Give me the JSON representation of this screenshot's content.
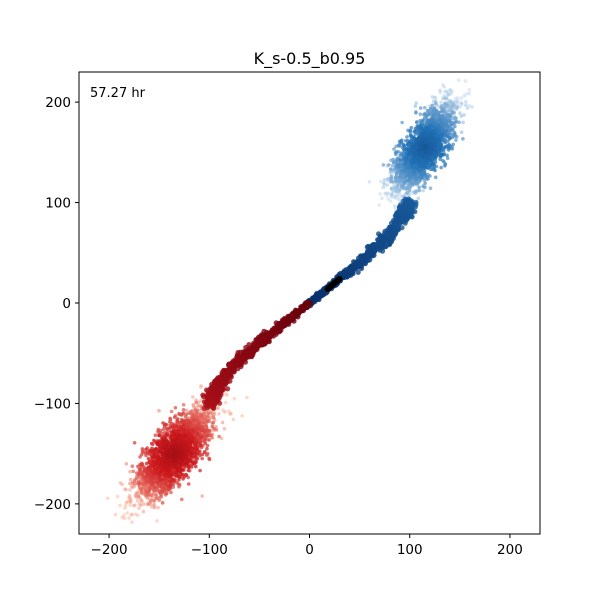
{
  "chart_data": {
    "type": "scatter",
    "title": "K_s-0.5_b0.95",
    "annotation": "57.27 hr",
    "xlabel": "",
    "ylabel": "",
    "xlim": [
      -230,
      230
    ],
    "ylim": [
      -230,
      230
    ],
    "x_ticks": [
      -200,
      -100,
      0,
      100,
      200
    ],
    "x_tick_labels": [
      "−200",
      "−100",
      "0",
      "100",
      "200"
    ],
    "y_ticks": [
      -200,
      -100,
      0,
      100,
      200
    ],
    "y_tick_labels": [
      "−200",
      "−100",
      "0",
      "100",
      "200"
    ],
    "grid": false,
    "colors": {
      "blue_dark": "#08306b",
      "blue_mid": "#2171b5",
      "blue_light": "#c6dbef",
      "red_dark": "#67000d",
      "red_mid": "#cb181d",
      "red_light": "#fcbba1",
      "core": "#000000"
    },
    "series": [
      {
        "colormap": "Blues",
        "path": [
          [
            0,
            0
          ],
          [
            25,
            20
          ],
          [
            50,
            40
          ],
          [
            75,
            62
          ],
          [
            92,
            85
          ],
          [
            100,
            100
          ],
          [
            110,
            125
          ],
          [
            120,
            150
          ],
          [
            140,
            185
          ],
          [
            150,
            205
          ]
        ],
        "stream_end_index": 5,
        "cloud": {
          "center": [
            115,
            155
          ],
          "axis_angle_deg": 58,
          "half_length": 55,
          "half_width": 18
        }
      },
      {
        "colormap": "Reds",
        "path": [
          [
            0,
            0
          ],
          [
            -25,
            -20
          ],
          [
            -50,
            -40
          ],
          [
            -75,
            -62
          ],
          [
            -92,
            -85
          ],
          [
            -100,
            -100
          ],
          [
            -110,
            -120
          ],
          [
            -125,
            -140
          ],
          [
            -150,
            -170
          ],
          [
            -180,
            -200
          ]
        ],
        "stream_end_index": 5,
        "cloud": {
          "center": [
            -135,
            -150
          ],
          "axis_angle_deg": 52,
          "half_length": 62,
          "half_width": 20
        }
      }
    ],
    "core_segment": [
      [
        18,
        14
      ],
      [
        30,
        24
      ]
    ]
  }
}
